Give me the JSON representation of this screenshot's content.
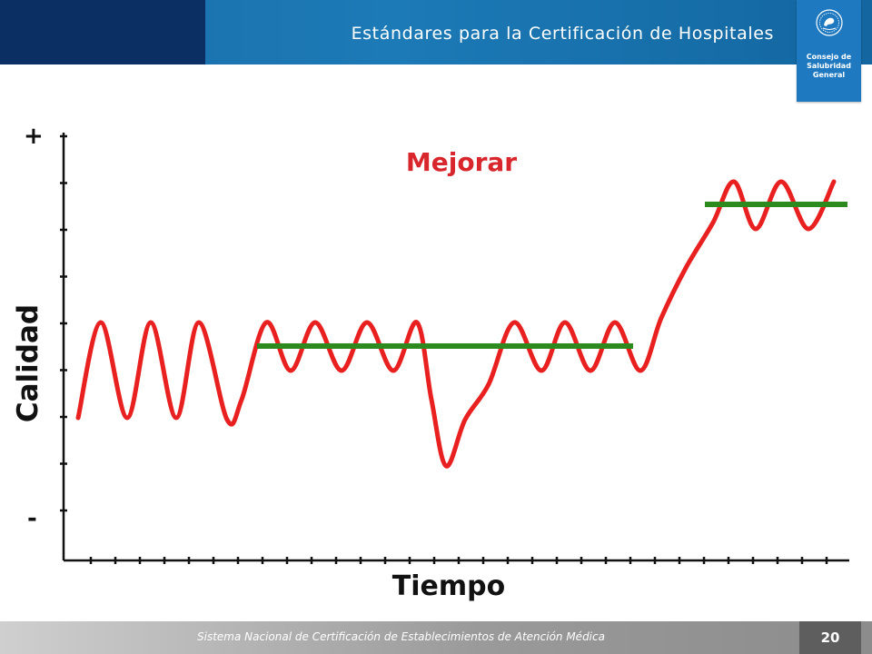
{
  "header": {
    "title": "Estándares para la Certificación de Hospitales"
  },
  "logo": {
    "line1": "Consejo de",
    "line2": "Salubridad",
    "line3": "General",
    "icon": "mexican-seal-icon"
  },
  "diagram": {
    "title": "Mejorar",
    "y_axis_label": "Calidad",
    "x_axis_label": "Tiempo",
    "y_top_marker": "+",
    "y_bottom_marker": "-"
  },
  "footer": {
    "text": "Sistema Nacional de Certificación de Establecimientos de Atención Médica",
    "page_number": "20"
  },
  "colors": {
    "curve": "#e8201f",
    "level_line": "#2c8a1f",
    "title": "#d9262c",
    "header_dark": "#0b2f63",
    "header_blue": "#1c7ab6",
    "page_badge": "#5e5e5e"
  }
}
